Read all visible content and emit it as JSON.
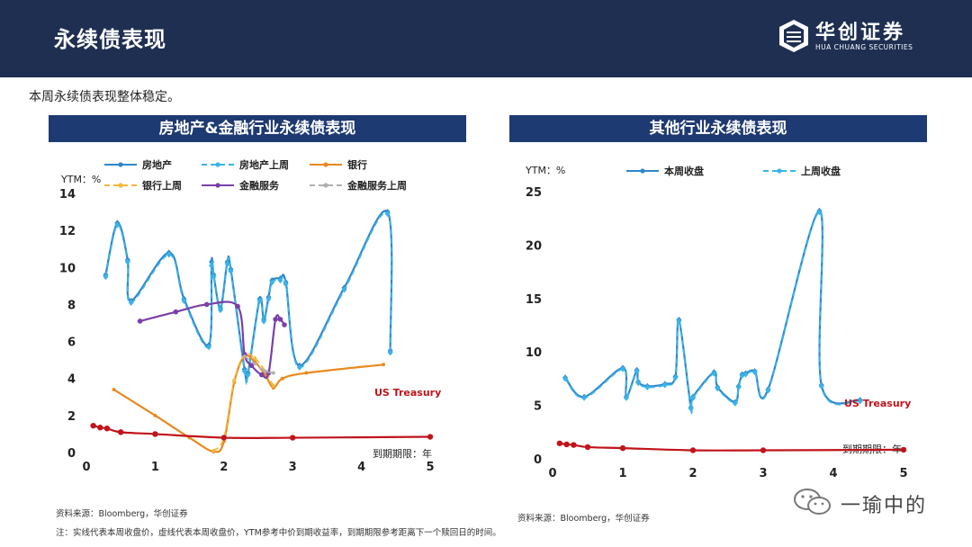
{
  "header": {
    "title": "永续债表现",
    "logo_cn": "华创证券",
    "logo_en": "HUA CHUANG SECURITIES"
  },
  "summary": "本周永续债表现整体稳定。",
  "footer": {
    "source_left": "资料来源：Bloomberg，华创证券",
    "source_right": "资料来源：Bloomberg，华创证券",
    "note": "注：实线代表本周收盘价，虚线代表本周收盘价，YTM参考中价到期收益率，到期期限参考距离下一个赎回日的时间。"
  },
  "watermark": {
    "text": "一瑜中的"
  },
  "chart_data": [
    {
      "type": "line",
      "title": "房地产&金融行业永续债表现",
      "ylabel": "YTM：%",
      "xlabel": "到期期限：年",
      "xlim": [
        0,
        5
      ],
      "ylim": [
        0,
        14
      ],
      "xticks": [
        0,
        1,
        2,
        3,
        4,
        5
      ],
      "yticks": [
        0,
        2,
        4,
        6,
        8,
        10,
        12,
        14
      ],
      "legend": [
        "房地产",
        "房地产上周",
        "银行",
        "银行上周",
        "金融服务",
        "金融服务上周"
      ],
      "annotation": "US Treasury",
      "series": [
        {
          "name": "房地产",
          "color": "#2e86c8",
          "dash": false,
          "x": [
            0.28,
            0.45,
            0.6,
            0.65,
            1.2,
            1.42,
            1.78,
            1.82,
            1.85,
            1.95,
            2.05,
            2.1,
            2.3,
            2.35,
            2.52,
            2.58,
            2.65,
            2.7,
            2.82,
            2.9,
            3.1,
            3.75,
            4.38,
            4.42
          ],
          "y": [
            9.6,
            12.4,
            10.4,
            8.2,
            10.8,
            8.3,
            5.8,
            10.3,
            9.6,
            7.8,
            10.3,
            9.9,
            4.5,
            4.3,
            8.3,
            7.2,
            8.4,
            9.3,
            9.4,
            9.2,
            4.7,
            8.9,
            13.0,
            5.5
          ]
        },
        {
          "name": "房地产上周",
          "color": "#3ab4e8",
          "dash": true,
          "x": [
            0.28,
            0.45,
            0.6,
            0.65,
            1.2,
            1.42,
            1.78,
            1.82,
            1.85,
            1.95,
            2.05,
            2.1,
            2.3,
            2.35,
            2.52,
            2.58,
            2.65,
            2.7,
            2.82,
            2.9,
            3.1,
            3.75,
            4.38,
            4.42
          ],
          "y": [
            9.5,
            12.3,
            10.3,
            8.1,
            10.7,
            8.2,
            5.7,
            10.1,
            9.5,
            7.7,
            10.2,
            9.8,
            4.4,
            4.2,
            8.2,
            7.1,
            8.3,
            9.2,
            9.3,
            9.1,
            4.6,
            8.8,
            12.9,
            5.4
          ]
        },
        {
          "name": "银行",
          "color": "#e88a1f",
          "dash": false,
          "x": [
            0.4,
            1.0,
            1.5,
            1.85,
            2.0,
            2.15,
            2.3,
            2.45,
            2.6,
            2.72,
            2.85,
            3.2,
            4.32
          ],
          "y": [
            3.4,
            2.0,
            0.8,
            0.05,
            0.6,
            3.8,
            5.2,
            4.9,
            4.2,
            3.5,
            4.0,
            4.3,
            4.75
          ]
        },
        {
          "name": "银行上周",
          "color": "#f3b73a",
          "dash": true,
          "x": [
            1.85,
            2.0,
            2.15,
            2.3,
            2.45,
            2.6,
            2.72
          ],
          "y": [
            0.1,
            0.8,
            3.9,
            5.3,
            5.1,
            4.4,
            3.6
          ]
        },
        {
          "name": "金融服务",
          "color": "#7a3fa8",
          "dash": false,
          "x": [
            0.78,
            1.3,
            1.75,
            2.2,
            2.3,
            2.4,
            2.55,
            2.65,
            2.75,
            2.82,
            2.88
          ],
          "y": [
            7.1,
            7.6,
            8.0,
            7.9,
            5.3,
            4.7,
            4.2,
            4.3,
            7.2,
            7.2,
            6.9
          ]
        },
        {
          "name": "金融服务上周",
          "color": "#b0b0b0",
          "dash": true,
          "x": [
            2.3,
            2.45,
            2.6,
            2.72
          ],
          "y": [
            5.2,
            4.8,
            4.4,
            4.3
          ]
        },
        {
          "name": "US Treasury",
          "color": "#c0141b",
          "dash": false,
          "x": [
            0.1,
            0.2,
            0.3,
            0.5,
            1.0,
            2.0,
            3.0,
            5.0
          ],
          "y": [
            1.45,
            1.35,
            1.3,
            1.1,
            1.0,
            0.8,
            0.8,
            0.85
          ]
        }
      ]
    },
    {
      "type": "line",
      "title": "其他行业永续债表现",
      "ylabel": "YTM：%",
      "xlabel": "到期期限：年",
      "xlim": [
        0,
        5
      ],
      "ylim": [
        0,
        25
      ],
      "xticks": [
        0,
        1,
        2,
        3,
        4,
        5
      ],
      "yticks": [
        0,
        5,
        10,
        15,
        20,
        25
      ],
      "legend": [
        "本周收盘",
        "上周收盘"
      ],
      "annotation": "US Treasury",
      "series": [
        {
          "name": "本周收盘",
          "color": "#2e86c8",
          "dash": false,
          "x": [
            0.18,
            0.45,
            1.0,
            1.05,
            1.2,
            1.22,
            1.35,
            1.6,
            1.75,
            1.8,
            1.97,
            2.0,
            2.3,
            2.35,
            2.6,
            2.65,
            2.7,
            2.75,
            2.88,
            3.07,
            3.8,
            3.83,
            4.38
          ],
          "y": [
            7.6,
            5.8,
            8.5,
            5.8,
            8.3,
            7.2,
            6.8,
            7.0,
            7.7,
            13.0,
            4.8,
            5.8,
            8.1,
            6.7,
            5.3,
            6.8,
            7.9,
            8.0,
            8.2,
            6.5,
            23.2,
            6.9,
            5.5
          ]
        },
        {
          "name": "上周收盘",
          "color": "#3ab4e8",
          "dash": true,
          "x": [
            0.18,
            0.45,
            1.0,
            1.05,
            1.2,
            1.22,
            1.35,
            1.6,
            1.75,
            1.8,
            1.97,
            2.0,
            2.3,
            2.35,
            2.6,
            2.65,
            2.7,
            2.75,
            2.88,
            3.07,
            3.8,
            3.83,
            4.38
          ],
          "y": [
            7.5,
            5.7,
            8.4,
            5.7,
            8.2,
            7.1,
            6.7,
            6.9,
            7.6,
            12.9,
            4.7,
            5.7,
            8.0,
            6.6,
            5.2,
            6.7,
            7.8,
            7.9,
            8.1,
            6.4,
            23.1,
            6.8,
            5.4
          ]
        },
        {
          "name": "US Treasury",
          "color": "#c0141b",
          "dash": false,
          "x": [
            0.1,
            0.2,
            0.3,
            0.5,
            1.0,
            2.0,
            3.0,
            5.0
          ],
          "y": [
            1.45,
            1.35,
            1.3,
            1.1,
            1.0,
            0.8,
            0.8,
            0.85
          ]
        }
      ]
    }
  ]
}
